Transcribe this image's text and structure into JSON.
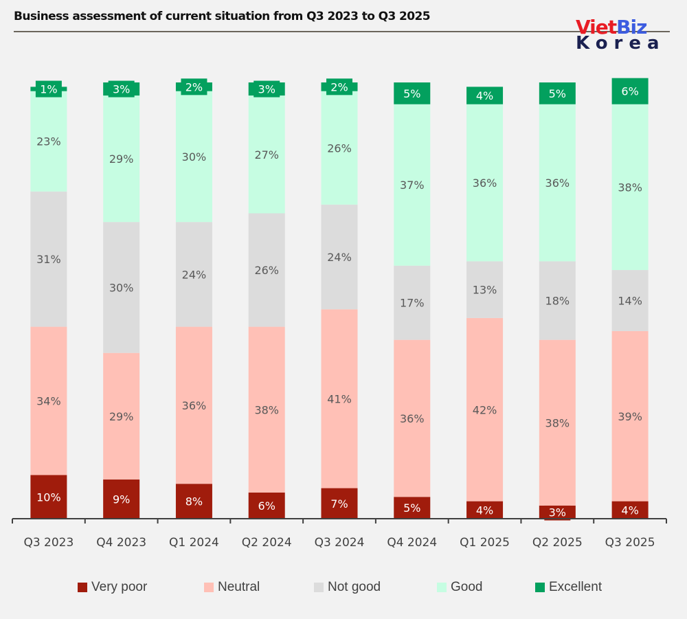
{
  "header": {
    "title": "Business assessment of current situation from Q3 2023 to Q3 2025",
    "logo_part1": "Viet",
    "logo_part2": "Biz",
    "logo_part3": "Korea"
  },
  "chart_data": {
    "type": "bar",
    "stacked": true,
    "title": "Business assessment of current situation from Q3 2023 to Q3 2025",
    "xlabel": "",
    "ylabel": "",
    "ylim": [
      0,
      100
    ],
    "grid": false,
    "legend_position": "bottom",
    "categories": [
      "Q3 2023",
      "Q4 2023",
      "Q1 2024",
      "Q2 2024",
      "Q3 2024",
      "Q4 2024",
      "Q1 2025",
      "Q2 2025",
      "Q3 2025"
    ],
    "series": [
      {
        "name": "Very poor",
        "color": "#a01c0c",
        "label_color": "#ffffff",
        "values": [
          10,
          9,
          8,
          6,
          7,
          5,
          4,
          3,
          4
        ]
      },
      {
        "name": "Neutral",
        "color": "#ffc0b6",
        "label_color": "#595959",
        "values": [
          34,
          29,
          36,
          38,
          41,
          36,
          42,
          38,
          39
        ]
      },
      {
        "name": "Not good",
        "color": "#dcdcdc",
        "label_color": "#595959",
        "values": [
          31,
          30,
          24,
          26,
          24,
          17,
          13,
          18,
          14
        ]
      },
      {
        "name": "Good",
        "color": "#c6fde2",
        "label_color": "#595959",
        "values": [
          23,
          29,
          30,
          27,
          26,
          37,
          36,
          36,
          38
        ]
      },
      {
        "name": "Excellent",
        "color": "#03a05e",
        "label_color": "#ffffff",
        "values": [
          1,
          3,
          2,
          3,
          2,
          5,
          4,
          5,
          6
        ]
      }
    ],
    "label_format": "{v}%"
  }
}
